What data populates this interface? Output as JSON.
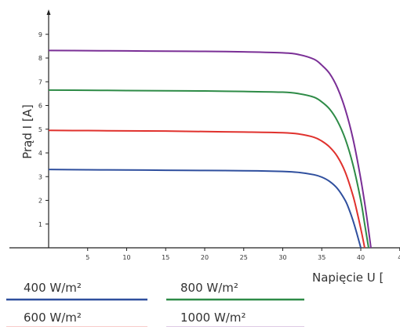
{
  "chart_data": {
    "type": "line",
    "xlabel": "Napięcie U [",
    "ylabel": "Prąd I [A]",
    "xlim": [
      0,
      40
    ],
    "ylim": [
      0,
      9
    ],
    "x_ticks": [
      "5",
      "10",
      "15",
      "20",
      "25",
      "30",
      "35",
      "40",
      "4"
    ],
    "y_ticks": [
      "1",
      "2",
      "3",
      "4",
      "5",
      "6",
      "7",
      "8",
      "9"
    ],
    "grid": false,
    "legend_position": "bottom",
    "series": [
      {
        "name": "400 W/m²",
        "color": "#2f4f9e",
        "x": [
          0,
          5,
          10,
          15,
          20,
          25,
          30,
          32,
          34,
          35,
          36,
          37,
          38,
          38.5,
          39,
          39.5,
          40
        ],
        "y": [
          3.3,
          3.29,
          3.28,
          3.27,
          3.26,
          3.25,
          3.22,
          3.18,
          3.08,
          2.98,
          2.8,
          2.5,
          2.0,
          1.62,
          1.15,
          0.6,
          0.0
        ]
      },
      {
        "name": "600 W/m²",
        "color": "#e0312d",
        "x": [
          0,
          5,
          10,
          15,
          20,
          25,
          30,
          32,
          34,
          35,
          36,
          37,
          38,
          39,
          39.6,
          40.1,
          40.5
        ],
        "y": [
          4.95,
          4.94,
          4.93,
          4.92,
          4.9,
          4.88,
          4.85,
          4.8,
          4.66,
          4.5,
          4.25,
          3.85,
          3.2,
          2.2,
          1.4,
          0.65,
          0.0
        ]
      },
      {
        "name": "800 W/m²",
        "color": "#2e8b47",
        "x": [
          0,
          5,
          10,
          15,
          20,
          25,
          30,
          32,
          34,
          35,
          36,
          37,
          38,
          39,
          40,
          40.5,
          41
        ],
        "y": [
          6.65,
          6.64,
          6.63,
          6.62,
          6.61,
          6.59,
          6.56,
          6.5,
          6.35,
          6.15,
          5.85,
          5.35,
          4.6,
          3.5,
          2.0,
          1.0,
          0.0
        ]
      },
      {
        "name": "1000 W/m²",
        "color": "#7a2f96",
        "x": [
          0,
          5,
          10,
          15,
          20,
          25,
          30,
          32,
          34,
          35,
          36,
          37,
          38,
          39,
          40,
          40.7,
          41.3
        ],
        "y": [
          8.32,
          8.31,
          8.3,
          8.29,
          8.28,
          8.26,
          8.22,
          8.15,
          7.95,
          7.7,
          7.35,
          6.75,
          5.85,
          4.6,
          2.9,
          1.45,
          0.0
        ]
      }
    ]
  },
  "legend": [
    {
      "label": "400 W/m²",
      "color": "#2f4f9e"
    },
    {
      "label": "800 W/m²",
      "color": "#2e8b47"
    },
    {
      "label": "600 W/m²",
      "color": "#e0312d"
    },
    {
      "label": "1000 W/m²",
      "color": "#7a2f96"
    }
  ]
}
